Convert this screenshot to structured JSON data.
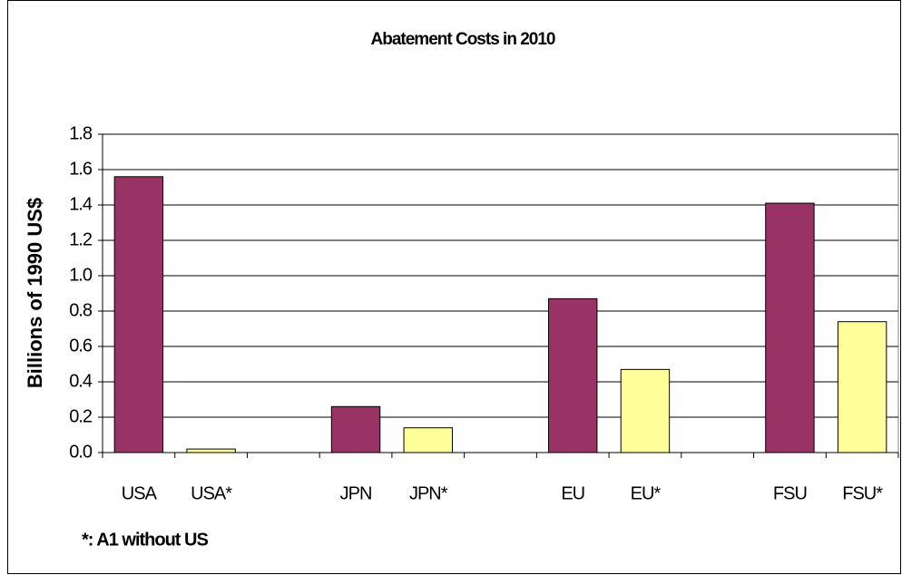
{
  "chart_data": {
    "type": "bar",
    "title": "Abatement Costs in 2010",
    "y_label": "Billions of 1990 US$",
    "annotation": "*: A1 without US",
    "categories": [
      "USA",
      "USA*",
      null,
      "JPN",
      "JPN*",
      null,
      "EU",
      "EU*",
      null,
      "FSU",
      "FSU*"
    ],
    "values": [
      1.56,
      0.02,
      null,
      0.26,
      0.14,
      null,
      0.87,
      0.47,
      null,
      1.41,
      0.74
    ],
    "colors": [
      "#993366",
      "#ffff99",
      null,
      "#993366",
      "#ffff99",
      null,
      "#993366",
      "#ffff99",
      null,
      "#993366",
      "#ffff99"
    ],
    "ylim": [
      0,
      1.8
    ],
    "yticks": [
      {
        "value": 0,
        "label": "0.0"
      },
      0.2,
      0.4,
      0.6,
      0.8,
      {
        "value": 1,
        "label": "1.0"
      },
      1.2,
      1.4,
      1.6,
      1.8
    ],
    "grid": true
  }
}
